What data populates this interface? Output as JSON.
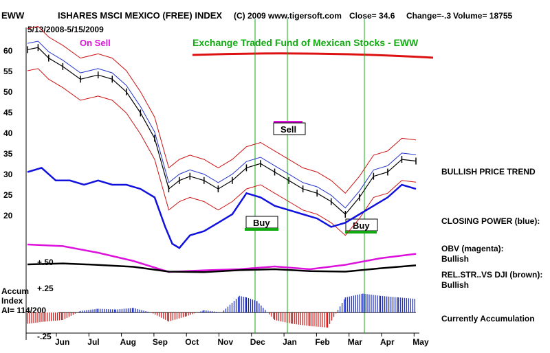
{
  "header": {
    "ticker": "EWW",
    "name": "ISHARES MSCI MEXICO (FREE) INDEX",
    "copyright": "(C) 2009 www.tigersoft.com",
    "close": "Close=  34.6",
    "change": "Change=-.3",
    "volume": "Volume= 18755",
    "date_range": "5/13/2008-5/15/2009"
  },
  "annotations": {
    "on_sell": "On Sell",
    "headline": "Exchange Traded Fund of Mexican Stocks - EWW",
    "sell": "Sell",
    "buy1": "Buy",
    "buy2": "Buy"
  },
  "side_labels": {
    "price_trend": "BULLISH PRICE TREND",
    "closing_power": "CLOSING POWER (blue):",
    "obv1": "OBV (magenta):",
    "obv2": "Bullish",
    "relstr1": "REL.STR..VS DJI (brown):",
    "relstr2": "Bullish",
    "accum": "Currently Accumulation"
  },
  "accum_panel": {
    "label1": "Accum",
    "label2": "Index",
    "label3": "AI= 114/200"
  },
  "colors": {
    "price": "#000000",
    "closing_power": "#1111dd",
    "obv": "#dd11dd",
    "relstr": "#000000",
    "band": "#cc1111",
    "ma_blue": "#2233cc",
    "signal_line": "#11aa11",
    "headline": "#11aa11",
    "underline": "#dd1111",
    "on_sell": "#dd11dd",
    "accum_pos": "#1122bb",
    "accum_neg": "#cc1111"
  },
  "chart_data": {
    "type": "line",
    "x_ticks": [
      "Jun",
      "Jul",
      "Aug",
      "Sep",
      "Oct",
      "Nov",
      "Dec",
      "Jan",
      "Feb",
      "Mar",
      "Apr",
      "May"
    ],
    "y_ticks": [
      60,
      55,
      50,
      45,
      40,
      35,
      30,
      25,
      20
    ],
    "accum_ticks": [
      "+.50",
      "+.25",
      "-.25"
    ],
    "ylim": [
      15,
      63
    ],
    "signals": [
      {
        "label": "Buy",
        "date": "Dec"
      },
      {
        "label": "Sell",
        "date": "Jan"
      },
      {
        "label": "Buy",
        "date": "Mar"
      }
    ],
    "series": [
      {
        "name": "EWW",
        "x": [
          0,
          0.3,
          0.6,
          1,
          1.5,
          2,
          2.4,
          2.8,
          3.2,
          3.6,
          4,
          4.3,
          4.6,
          5,
          5.4,
          5.8,
          6.2,
          6.6,
          7,
          7.4,
          7.8,
          8.2,
          8.6,
          9,
          9.4,
          9.8,
          10.2,
          10.6,
          11
        ],
        "y": [
          61,
          61.5,
          59,
          57,
          54,
          55,
          54,
          51,
          46,
          40,
          28,
          30,
          31,
          30,
          28,
          30,
          33,
          34,
          32,
          30,
          28,
          27,
          25,
          22,
          26,
          31,
          32,
          35,
          34.6
        ]
      },
      {
        "name": "CLOSING POWER",
        "x": [
          0,
          0.4,
          0.8,
          1.2,
          1.6,
          2,
          2.4,
          2.8,
          3.2,
          3.6,
          3.9,
          4.1,
          4.3,
          4.6,
          5,
          5.4,
          5.8,
          6.2,
          6.6,
          7,
          7.4,
          7.8,
          8.2,
          8.6,
          9,
          9.4,
          9.8,
          10.2,
          10.6,
          11
        ],
        "y": [
          32,
          33,
          30,
          30,
          29,
          30,
          29,
          29,
          28,
          26,
          19,
          15,
          14,
          17,
          18,
          20,
          22,
          27,
          26,
          24,
          23,
          22,
          21,
          19,
          20,
          22,
          24,
          26,
          29,
          28
        ]
      },
      {
        "name": "OBV",
        "x": [
          0,
          1,
          2,
          3,
          4,
          5,
          6,
          7,
          8,
          9,
          10,
          11
        ],
        "y": [
          0.55,
          0.52,
          0.4,
          0.25,
          0.05,
          0.08,
          0.1,
          0.15,
          0.1,
          0.18,
          0.3,
          0.38
        ]
      },
      {
        "name": "REL.STR..VS DJI",
        "x": [
          0,
          1,
          2,
          3,
          4,
          5,
          6,
          7,
          8,
          9,
          10,
          11
        ],
        "y": [
          0.5,
          0.52,
          0.49,
          0.45,
          0.35,
          0.34,
          0.38,
          0.4,
          0.36,
          0.35,
          0.42,
          0.48
        ]
      }
    ],
    "accum_index": {
      "x": [
        0,
        0.5,
        1,
        1.5,
        2,
        2.5,
        3,
        3.5,
        4,
        4.5,
        5,
        5.5,
        6,
        6.2,
        6.5,
        7,
        7.5,
        8,
        8.5,
        9,
        9.5,
        10,
        10.5,
        11
      ],
      "y": [
        -0.15,
        -0.12,
        -0.1,
        0.02,
        0.05,
        0.04,
        0.06,
        0.0,
        -0.12,
        -0.05,
        0.03,
        0.0,
        0.22,
        0.2,
        0.15,
        -0.1,
        -0.15,
        -0.18,
        -0.2,
        0.2,
        0.25,
        0.22,
        0.2,
        0.18
      ]
    }
  }
}
